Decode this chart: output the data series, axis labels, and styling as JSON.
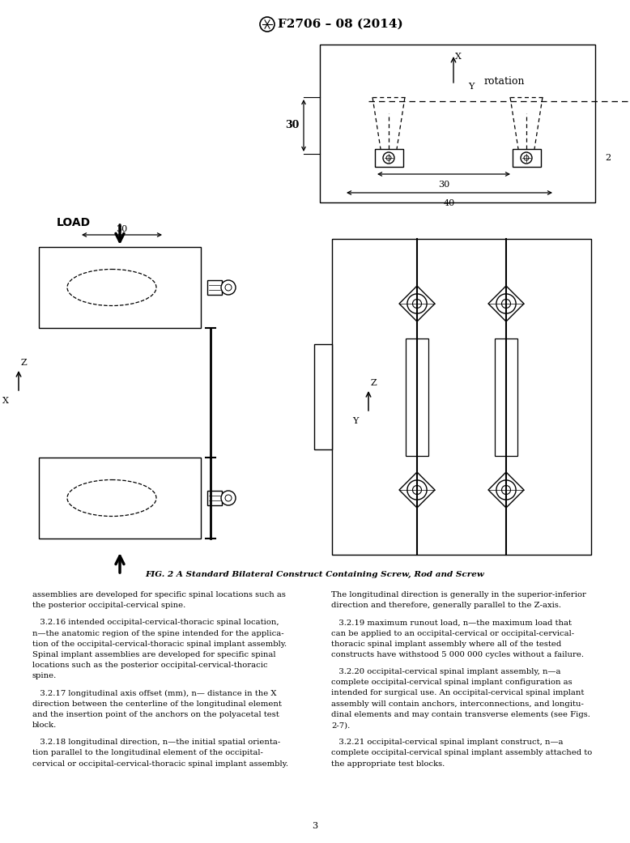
{
  "title": "F2706 – 08 (2014)",
  "fig_caption": "FIG. 2 A Standard Bilateral Construct Containing Screw, Rod and Screw",
  "page_number": "3",
  "bg_color": "#ffffff",
  "body_text_left": [
    "assemblies are developed for specific spinal locations such as",
    "the posterior occipital-cervical spine.",
    "",
    "   3.2.16 intended occipital-cervical-thoracic spinal location,",
    "n—the anatomic region of the spine intended for the applica-",
    "tion of the occipital-cervical-thoracic spinal implant assembly.",
    "Spinal implant assemblies are developed for specific spinal",
    "locations such as the posterior occipital-cervical-thoracic",
    "spine.",
    "",
    "   3.2.17 longitudinal axis offset (mm), n— distance in the X",
    "direction between the centerline of the longitudinal element",
    "and the insertion point of the anchors on the polyacetal test",
    "block.",
    "",
    "   3.2.18 longitudinal direction, n—the initial spatial orienta-",
    "tion parallel to the longitudinal element of the occipital-",
    "cervical or occipital-cervical-thoracic spinal implant assembly."
  ],
  "body_text_right": [
    "The longitudinal direction is generally in the superior-inferior",
    "direction and therefore, generally parallel to the Z-axis.",
    "",
    "   3.2.19 maximum runout load, n—the maximum load that",
    "can be applied to an occipital-cervical or occipital-cervical-",
    "thoracic spinal implant assembly where all of the tested",
    "constructs have withstood 5 000 000 cycles without a failure.",
    "",
    "   3.2.20 occipital-cervical spinal implant assembly, n—a",
    "complete occipital-cervical spinal implant configuration as",
    "intended for surgical use. An occipital-cervical spinal implant",
    "assembly will contain anchors, interconnections, and longitu-",
    "dinal elements and may contain transverse elements (see Figs.",
    "2-7).",
    "",
    "   3.2.21 occipital-cervical spinal implant construct, n—a",
    "complete occipital-cervical spinal implant assembly attached to",
    "the appropriate test blocks."
  ]
}
